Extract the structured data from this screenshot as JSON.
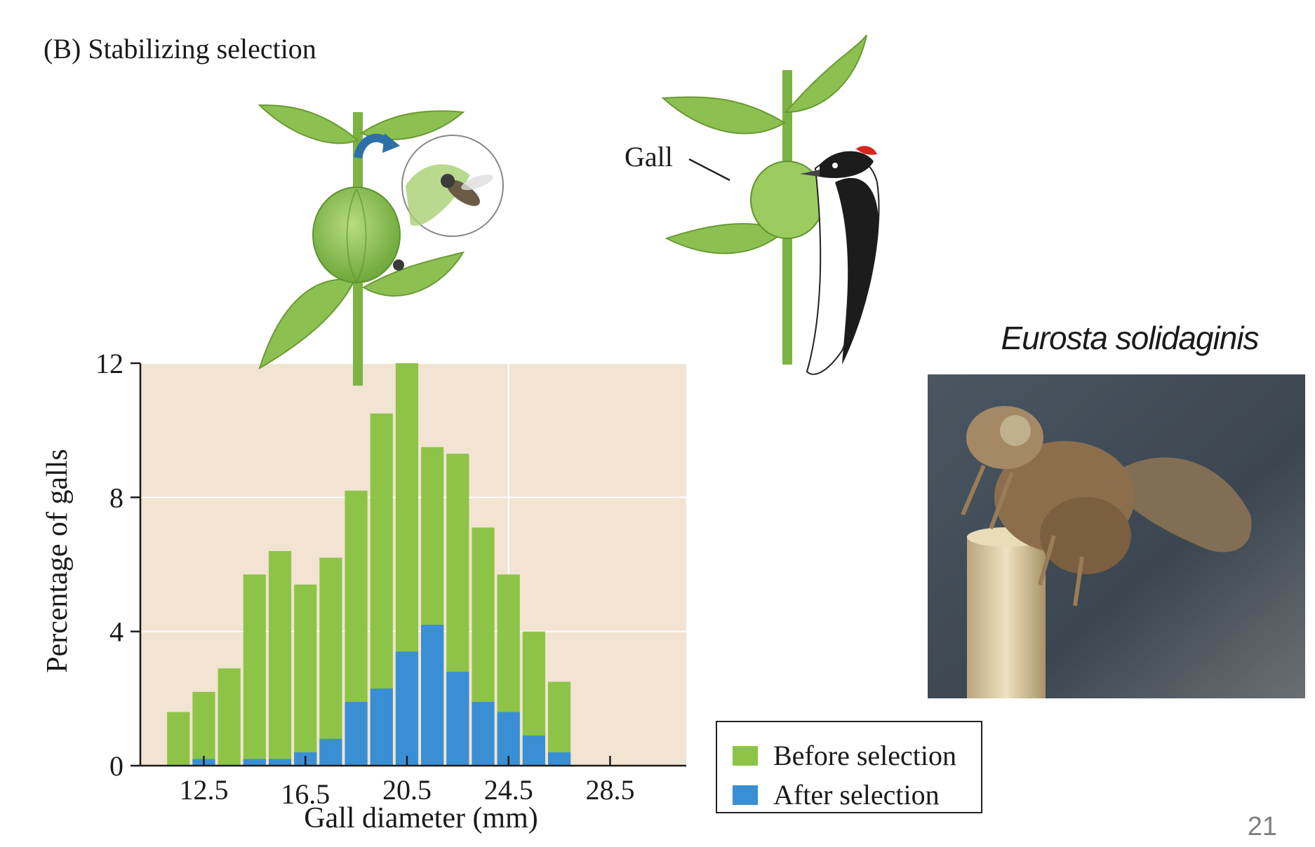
{
  "panel": {
    "label": "(B)  Stabilizing selection"
  },
  "illustration": {
    "gall_label": "Gall"
  },
  "photo": {
    "species": "Eurosta solidaginis"
  },
  "slide": {
    "number": "21"
  },
  "legend": {
    "items": [
      {
        "label": "Before selection",
        "color": "#8dc447"
      },
      {
        "label": "After selection",
        "color": "#3a8fd4"
      }
    ]
  },
  "chart_data": {
    "type": "bar",
    "title": "",
    "xlabel": "Gall diameter (mm)",
    "ylabel": "Percentage of galls",
    "ylim": [
      0,
      12
    ],
    "yticks": [
      "0",
      "4",
      "8",
      "12"
    ],
    "xtick_labels": [
      "12.5",
      "16.5",
      "20.5",
      "24.5",
      "28.5"
    ],
    "x_tick_positions": [
      12.5,
      16.5,
      20.5,
      24.5,
      28.5
    ],
    "bin_width": 1,
    "categories": [
      11.5,
      12.5,
      13.5,
      14.5,
      15.5,
      16.5,
      17.5,
      18.5,
      19.5,
      20.5,
      21.5,
      22.5,
      23.5,
      24.5,
      25.5,
      26.5,
      27.5,
      28.5
    ],
    "series": [
      {
        "name": "Before selection",
        "color": "#8dc447",
        "values": [
          1.6,
          2.2,
          2.9,
          5.7,
          6.4,
          5.4,
          6.2,
          8.2,
          10.5,
          12.0,
          9.5,
          9.3,
          7.1,
          5.7,
          4.0,
          2.5,
          0,
          0
        ]
      },
      {
        "name": "After selection",
        "color": "#3a8fd4",
        "values": [
          0,
          0.2,
          0,
          0.2,
          0.2,
          0.4,
          0.8,
          1.9,
          2.3,
          3.4,
          4.2,
          2.8,
          1.9,
          1.6,
          0.9,
          0.4,
          0,
          0
        ]
      }
    ],
    "grid": true,
    "plot_background": "#f2e3d2",
    "legend_position": "bottom-right"
  }
}
